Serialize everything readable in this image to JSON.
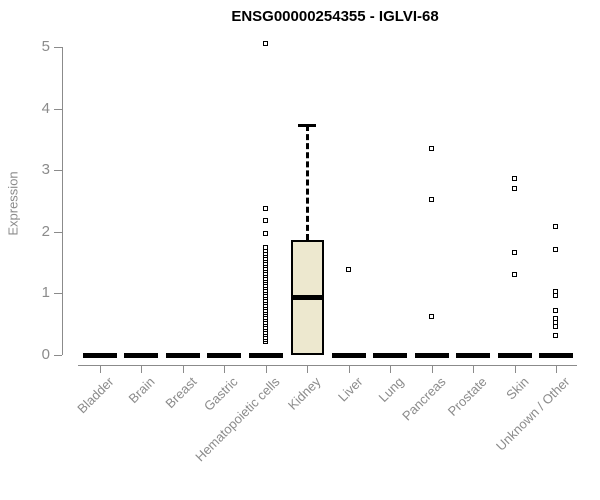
{
  "chart_data": {
    "type": "boxplot",
    "title": "ENSG00000254355 - IGLVI-68",
    "ylabel": "Expression",
    "xlabel": "",
    "ylim": [
      0,
      5
    ],
    "yticks": [
      0,
      1,
      2,
      3,
      4,
      5
    ],
    "grid": false,
    "legend": false,
    "categories": [
      "Bladder",
      "Brain",
      "Breast",
      "Gastric",
      "Hematopoietic cells",
      "Kidney",
      "Liver",
      "Lung",
      "Pancreas",
      "Prostate",
      "Skin",
      "Unknown / Other"
    ],
    "series": [
      {
        "name": "Bladder",
        "q1": 0,
        "median": 0,
        "q3": 0,
        "whisker_low": 0,
        "whisker_high": 0,
        "outliers": []
      },
      {
        "name": "Brain",
        "q1": 0,
        "median": 0,
        "q3": 0,
        "whisker_low": 0,
        "whisker_high": 0,
        "outliers": []
      },
      {
        "name": "Breast",
        "q1": 0,
        "median": 0,
        "q3": 0,
        "whisker_low": 0,
        "whisker_high": 0,
        "outliers": []
      },
      {
        "name": "Gastric",
        "q1": 0,
        "median": 0,
        "q3": 0,
        "whisker_low": 0,
        "whisker_high": 0,
        "outliers": []
      },
      {
        "name": "Hematopoietic cells",
        "q1": 0,
        "median": 0,
        "q3": 0,
        "whisker_low": 0,
        "whisker_high": 0,
        "outliers": [
          0.22,
          0.25,
          0.29,
          0.33,
          0.37,
          0.41,
          0.45,
          0.49,
          0.53,
          0.57,
          0.61,
          0.65,
          0.69,
          0.73,
          0.77,
          0.81,
          0.85,
          0.89,
          0.93,
          0.97,
          1.01,
          1.05,
          1.09,
          1.13,
          1.17,
          1.21,
          1.25,
          1.29,
          1.33,
          1.37,
          1.41,
          1.45,
          1.49,
          1.53,
          1.57,
          1.61,
          1.65,
          1.69,
          1.74,
          1.97,
          1.97,
          2.18,
          2.38,
          5.05
        ]
      },
      {
        "name": "Kidney",
        "q1": 0,
        "median": 0.93,
        "q3": 1.87,
        "whisker_low": 0,
        "whisker_high": 3.73,
        "outliers": []
      },
      {
        "name": "Liver",
        "q1": 0,
        "median": 0,
        "q3": 0,
        "whisker_low": 0,
        "whisker_high": 0,
        "outliers": [
          1.38
        ]
      },
      {
        "name": "Lung",
        "q1": 0,
        "median": 0,
        "q3": 0,
        "whisker_low": 0,
        "whisker_high": 0,
        "outliers": []
      },
      {
        "name": "Pancreas",
        "q1": 0,
        "median": 0,
        "q3": 0,
        "whisker_low": 0,
        "whisker_high": 0,
        "outliers": [
          0.62,
          2.53,
          3.36
        ]
      },
      {
        "name": "Prostate",
        "q1": 0,
        "median": 0,
        "q3": 0,
        "whisker_low": 0,
        "whisker_high": 0,
        "outliers": []
      },
      {
        "name": "Skin",
        "q1": 0,
        "median": 0,
        "q3": 0,
        "whisker_low": 0,
        "whisker_high": 0,
        "outliers": [
          1.31,
          1.66,
          2.71,
          2.86
        ]
      },
      {
        "name": "Unknown / Other",
        "q1": 0,
        "median": 0,
        "q3": 0,
        "whisker_low": 0,
        "whisker_high": 0,
        "outliers": [
          0.32,
          0.47,
          0.52,
          0.6,
          0.73,
          0.97,
          1.03,
          1.72,
          2.08
        ]
      }
    ],
    "style": {
      "box_fill": "#EDE8CF",
      "box_border": "#000000",
      "median_color": "#000000",
      "outlier_color": "#000000",
      "axis_color": "#8B8B8B",
      "label_color": "#8B8B8B",
      "title_color": "#000000",
      "background": "#FFFFFF"
    }
  }
}
